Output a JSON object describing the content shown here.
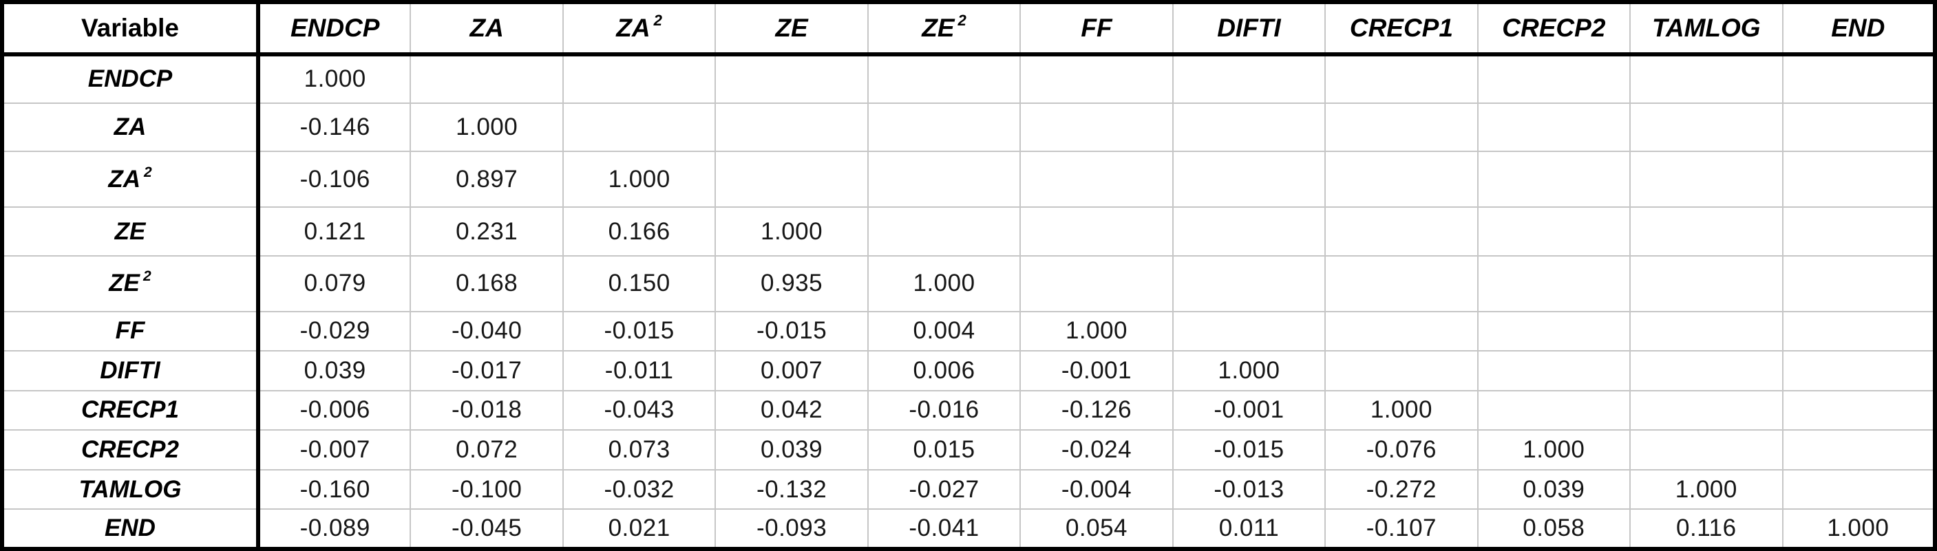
{
  "table": {
    "corner_label": "Variable",
    "columns": [
      {
        "text": "ENDCP",
        "sup": ""
      },
      {
        "text": "ZA",
        "sup": ""
      },
      {
        "text": "ZA",
        "sup": "2"
      },
      {
        "text": "ZE",
        "sup": ""
      },
      {
        "text": "ZE",
        "sup": "2"
      },
      {
        "text": "FF",
        "sup": ""
      },
      {
        "text": "DIFTI",
        "sup": ""
      },
      {
        "text": "CRECP1",
        "sup": ""
      },
      {
        "text": "CRECP2",
        "sup": ""
      },
      {
        "text": "TAMLOG",
        "sup": ""
      },
      {
        "text": "END",
        "sup": ""
      }
    ],
    "rows": [
      {
        "label": {
          "text": "ENDCP",
          "sup": ""
        },
        "values": [
          "1.000"
        ]
      },
      {
        "label": {
          "text": "ZA",
          "sup": ""
        },
        "values": [
          "-0.146",
          "1.000"
        ]
      },
      {
        "label": {
          "text": "ZA",
          "sup": "2"
        },
        "values": [
          "-0.106",
          "0.897",
          "1.000"
        ]
      },
      {
        "label": {
          "text": "ZE",
          "sup": ""
        },
        "values": [
          "0.121",
          "0.231",
          "0.166",
          "1.000"
        ]
      },
      {
        "label": {
          "text": "ZE",
          "sup": "2"
        },
        "values": [
          "0.079",
          "0.168",
          "0.150",
          "0.935",
          "1.000"
        ]
      },
      {
        "label": {
          "text": "FF",
          "sup": ""
        },
        "values": [
          "-0.029",
          "-0.040",
          "-0.015",
          "-0.015",
          "0.004",
          "1.000"
        ]
      },
      {
        "label": {
          "text": "DIFTI",
          "sup": ""
        },
        "values": [
          "0.039",
          "-0.017",
          "-0.011",
          "0.007",
          "0.006",
          "-0.001",
          "1.000"
        ]
      },
      {
        "label": {
          "text": "CRECP1",
          "sup": ""
        },
        "values": [
          "-0.006",
          "-0.018",
          "-0.043",
          "0.042",
          "-0.016",
          "-0.126",
          "-0.001",
          "1.000"
        ]
      },
      {
        "label": {
          "text": "CRECP2",
          "sup": ""
        },
        "values": [
          "-0.007",
          "0.072",
          "0.073",
          "0.039",
          "0.015",
          "-0.024",
          "-0.015",
          "-0.076",
          "1.000"
        ]
      },
      {
        "label": {
          "text": "TAMLOG",
          "sup": ""
        },
        "values": [
          "-0.160",
          "-0.100",
          "-0.032",
          "-0.132",
          "-0.027",
          "-0.004",
          "-0.013",
          "-0.272",
          "0.039",
          "1.000"
        ]
      },
      {
        "label": {
          "text": "END",
          "sup": ""
        },
        "values": [
          "-0.089",
          "-0.045",
          "0.021",
          "-0.093",
          "-0.041",
          "0.054",
          "0.011",
          "-0.107",
          "0.058",
          "0.116",
          "1.000"
        ]
      }
    ]
  },
  "colors": {
    "border_heavy": "#000000",
    "grid_line": "#c6c6c6",
    "text": "#161616",
    "background": "#ffffff"
  },
  "chart_data": {
    "type": "table",
    "title": "Correlation matrix (lower triangular)",
    "corner_label": "Variable",
    "columns": [
      "ENDCP",
      "ZA",
      "ZA^2",
      "ZE",
      "ZE^2",
      "FF",
      "DIFTI",
      "CRECP1",
      "CRECP2",
      "TAMLOG",
      "END"
    ],
    "rows": [
      "ENDCP",
      "ZA",
      "ZA^2",
      "ZE",
      "ZE^2",
      "FF",
      "DIFTI",
      "CRECP1",
      "CRECP2",
      "TAMLOG",
      "END"
    ],
    "matrix": [
      [
        1.0
      ],
      [
        -0.146,
        1.0
      ],
      [
        -0.106,
        0.897,
        1.0
      ],
      [
        0.121,
        0.231,
        0.166,
        1.0
      ],
      [
        0.079,
        0.168,
        0.15,
        0.935,
        1.0
      ],
      [
        -0.029,
        -0.04,
        -0.015,
        -0.015,
        0.004,
        1.0
      ],
      [
        0.039,
        -0.017,
        -0.011,
        0.007,
        0.006,
        -0.001,
        1.0
      ],
      [
        -0.006,
        -0.018,
        -0.043,
        0.042,
        -0.016,
        -0.126,
        -0.001,
        1.0
      ],
      [
        -0.007,
        0.072,
        0.073,
        0.039,
        0.015,
        -0.024,
        -0.015,
        -0.076,
        1.0
      ],
      [
        -0.16,
        -0.1,
        -0.032,
        -0.132,
        -0.027,
        -0.004,
        -0.013,
        -0.272,
        0.039,
        1.0
      ],
      [
        -0.089,
        -0.045,
        0.021,
        -0.093,
        -0.041,
        0.054,
        0.011,
        -0.107,
        0.058,
        0.116,
        1.0
      ]
    ],
    "layout_hints": {
      "grid": true,
      "empty_upper_triangle": true,
      "header_style": "bold-italic",
      "first_column_header": "bold-upright"
    }
  }
}
